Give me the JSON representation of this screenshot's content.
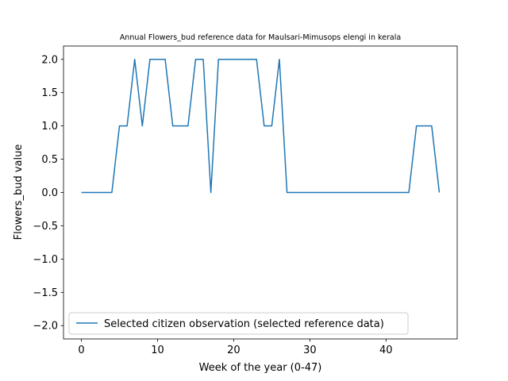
{
  "chart_data": {
    "type": "line",
    "title": "Annual Flowers_bud reference data for Maulsari-Mimusops elengi in kerala",
    "xlabel": "Week of the year (0-47)",
    "ylabel": "Flowers_bud value",
    "xlim": [
      -2.35,
      49.35
    ],
    "ylim": [
      -2.2,
      2.2
    ],
    "xticks": [
      0,
      10,
      20,
      30,
      40
    ],
    "yticks": [
      -2.0,
      -1.5,
      -1.0,
      -0.5,
      0.0,
      0.5,
      1.0,
      1.5,
      2.0
    ],
    "xtick_labels": [
      "0",
      "10",
      "20",
      "30",
      "40"
    ],
    "ytick_labels": [
      "−2.0",
      "−1.5",
      "−1.0",
      "−0.5",
      "0.0",
      "0.5",
      "1.0",
      "1.5",
      "2.0"
    ],
    "grid": false,
    "legend_position": "lower-left",
    "series": [
      {
        "name": "Selected citizen observation (selected reference data)",
        "color": "#1f77b4",
        "x": [
          0,
          1,
          2,
          3,
          4,
          5,
          6,
          7,
          8,
          9,
          10,
          11,
          12,
          13,
          14,
          15,
          16,
          17,
          18,
          19,
          20,
          21,
          22,
          23,
          24,
          25,
          26,
          27,
          28,
          29,
          30,
          31,
          32,
          33,
          34,
          35,
          36,
          37,
          38,
          39,
          40,
          41,
          42,
          43,
          44,
          45,
          46,
          47
        ],
        "y": [
          0,
          0,
          0,
          0,
          0,
          1,
          1,
          2,
          1,
          2,
          2,
          2,
          1,
          1,
          1,
          2,
          2,
          0,
          2,
          2,
          2,
          2,
          2,
          2,
          1,
          1,
          2,
          0,
          0,
          0,
          0,
          0,
          0,
          0,
          0,
          0,
          0,
          0,
          0,
          0,
          0,
          0,
          0,
          0,
          1,
          1,
          1,
          0
        ]
      }
    ]
  }
}
